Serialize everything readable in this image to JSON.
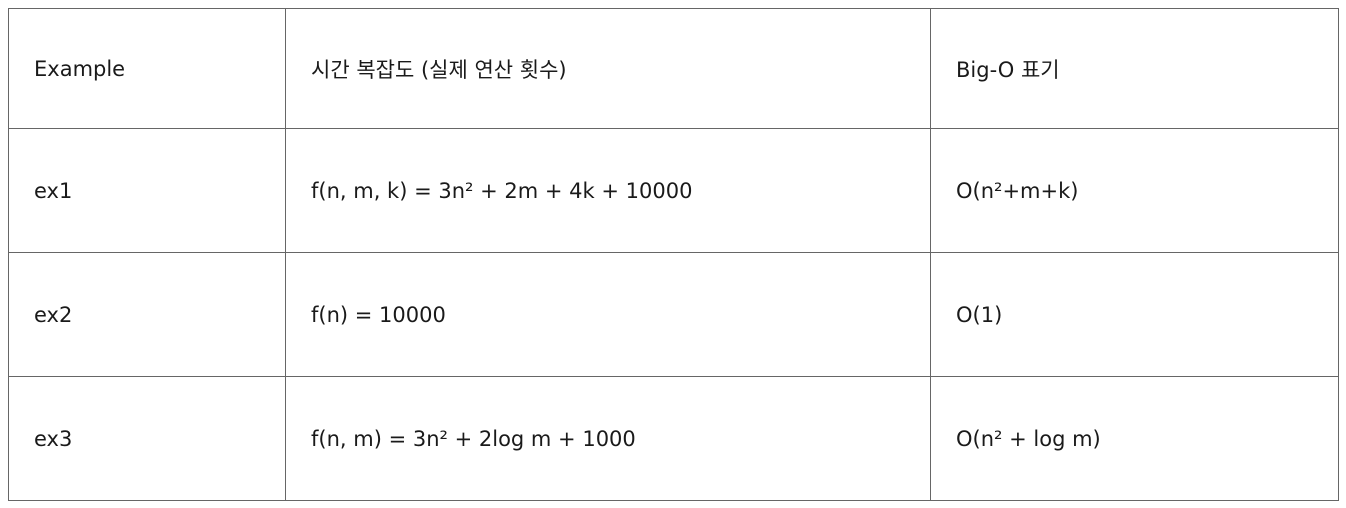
{
  "table": {
    "headers": [
      "Example",
      "시간 복잡도 (실제 연산 횟수)",
      "Big-O 표기"
    ],
    "rows": [
      [
        "ex1",
        "f(n, m, k) = 3n² + 2m + 4k + 10000",
        "O(n²+m+k)"
      ],
      [
        "ex2",
        "f(n) = 10000",
        "O(1)"
      ],
      [
        "ex3",
        "f(n, m) = 3n² + 2log m + 1000",
        "O(n² + log m)"
      ]
    ]
  }
}
